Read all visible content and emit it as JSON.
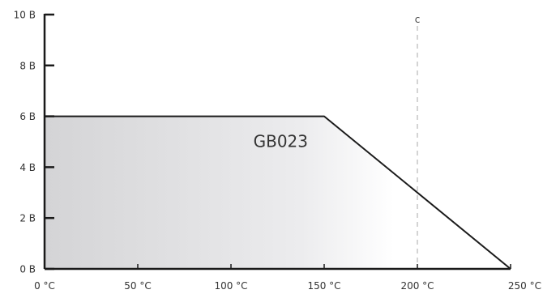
{
  "chart_data": {
    "type": "area",
    "title": "",
    "xlabel": "",
    "ylabel": "",
    "xlim": [
      0,
      250
    ],
    "ylim": [
      0,
      10
    ],
    "x_ticks": [
      {
        "value": 0,
        "label": "0 °C"
      },
      {
        "value": 50,
        "label": "50 °C"
      },
      {
        "value": 100,
        "label": "100 °C"
      },
      {
        "value": 150,
        "label": "150 °C"
      },
      {
        "value": 200,
        "label": "200 °C"
      },
      {
        "value": 250,
        "label": "250 °C"
      }
    ],
    "y_ticks": [
      {
        "value": 0,
        "label": "0 B"
      },
      {
        "value": 2,
        "label": "2 B"
      },
      {
        "value": 4,
        "label": "4 B"
      },
      {
        "value": 6,
        "label": "6 B"
      },
      {
        "value": 8,
        "label": "8 B"
      },
      {
        "value": 10,
        "label": "10 B"
      }
    ],
    "grid": false,
    "series": [
      {
        "name": "GB023",
        "x": [
          0,
          150,
          250
        ],
        "y": [
          6,
          6,
          0
        ]
      }
    ],
    "reference_lines": [
      {
        "x": 200,
        "label": "c",
        "style": "dashed"
      }
    ],
    "colors": {
      "line": "#1a1a1a",
      "axis": "#1a1a1a",
      "fill_start": "#d4d4d6",
      "fill_end": "#ffffff",
      "reference": "#b8b8b8"
    }
  }
}
